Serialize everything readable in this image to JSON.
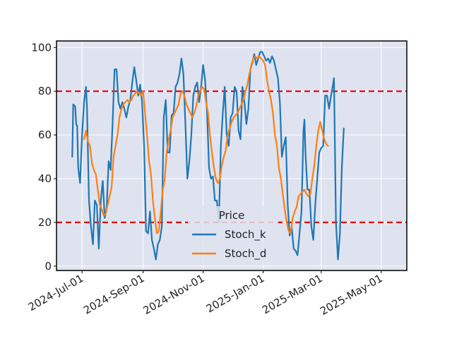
{
  "chart_data": {
    "type": "line",
    "title": "",
    "xlabel": "",
    "ylabel": "",
    "ylim": [
      -2,
      103
    ],
    "yticks": [
      0,
      20,
      40,
      60,
      80,
      100
    ],
    "xlim": [
      "2024-06-05",
      "2025-05-27"
    ],
    "xticks": [
      {
        "date": "2024-07-01",
        "label": "2024-Jul-01"
      },
      {
        "date": "2024-09-01",
        "label": "2024-Sep-01"
      },
      {
        "date": "2024-11-01",
        "label": "2024-Nov-01"
      },
      {
        "date": "2025-01-01",
        "label": "2025-Jan-01"
      },
      {
        "date": "2025-03-01",
        "label": "2025-Mar-01"
      },
      {
        "date": "2025-05-01",
        "label": "2025-May-01"
      }
    ],
    "grid": true,
    "background": "#dfe3f0",
    "legend": {
      "title": "Price",
      "placement": "lower-center"
    },
    "reference_lines": [
      {
        "y": 80,
        "color": "#e8000b",
        "style": "dashed"
      },
      {
        "y": 20,
        "color": "#e8000b",
        "style": "dashed"
      }
    ],
    "series": [
      {
        "name": "Stoch_k",
        "color": "#1f77b4",
        "points": [
          [
            "2024-06-21",
            50
          ],
          [
            "2024-06-22",
            74
          ],
          [
            "2024-06-24",
            73
          ],
          [
            "2024-06-25",
            65
          ],
          [
            "2024-06-26",
            64
          ],
          [
            "2024-06-27",
            45
          ],
          [
            "2024-06-29",
            38
          ],
          [
            "2024-07-01",
            60
          ],
          [
            "2024-07-03",
            75
          ],
          [
            "2024-07-05",
            82
          ],
          [
            "2024-07-06",
            72
          ],
          [
            "2024-07-08",
            30
          ],
          [
            "2024-07-10",
            18
          ],
          [
            "2024-07-12",
            10
          ],
          [
            "2024-07-14",
            30
          ],
          [
            "2024-07-16",
            28
          ],
          [
            "2024-07-18",
            8
          ],
          [
            "2024-07-20",
            30
          ],
          [
            "2024-07-22",
            39
          ],
          [
            "2024-07-24",
            22
          ],
          [
            "2024-07-26",
            27
          ],
          [
            "2024-07-28",
            48
          ],
          [
            "2024-07-30",
            44
          ],
          [
            "2024-08-01",
            65
          ],
          [
            "2024-08-03",
            90
          ],
          [
            "2024-08-05",
            90
          ],
          [
            "2024-08-07",
            75
          ],
          [
            "2024-08-09",
            72
          ],
          [
            "2024-08-11",
            75
          ],
          [
            "2024-08-13",
            72
          ],
          [
            "2024-08-15",
            68
          ],
          [
            "2024-08-17",
            73
          ],
          [
            "2024-08-19",
            76
          ],
          [
            "2024-08-21",
            84
          ],
          [
            "2024-08-23",
            91
          ],
          [
            "2024-08-25",
            85
          ],
          [
            "2024-08-27",
            78
          ],
          [
            "2024-08-29",
            83
          ],
          [
            "2024-08-31",
            75
          ],
          [
            "2024-09-02",
            55
          ],
          [
            "2024-09-04",
            16
          ],
          [
            "2024-09-06",
            15
          ],
          [
            "2024-09-08",
            25
          ],
          [
            "2024-09-10",
            12
          ],
          [
            "2024-09-12",
            8
          ],
          [
            "2024-09-14",
            3
          ],
          [
            "2024-09-16",
            10
          ],
          [
            "2024-09-18",
            12
          ],
          [
            "2024-09-20",
            18
          ],
          [
            "2024-09-22",
            68
          ],
          [
            "2024-09-24",
            76
          ],
          [
            "2024-09-26",
            52
          ],
          [
            "2024-09-28",
            52
          ],
          [
            "2024-09-30",
            69
          ],
          [
            "2024-10-02",
            70
          ],
          [
            "2024-10-04",
            82
          ],
          [
            "2024-10-06",
            84
          ],
          [
            "2024-10-08",
            88
          ],
          [
            "2024-10-10",
            95
          ],
          [
            "2024-10-12",
            88
          ],
          [
            "2024-10-14",
            65
          ],
          [
            "2024-10-16",
            40
          ],
          [
            "2024-10-18",
            48
          ],
          [
            "2024-10-20",
            60
          ],
          [
            "2024-10-22",
            78
          ],
          [
            "2024-10-24",
            82
          ],
          [
            "2024-10-26",
            84
          ],
          [
            "2024-10-28",
            75
          ],
          [
            "2024-10-30",
            82
          ],
          [
            "2024-11-01",
            92
          ],
          [
            "2024-11-03",
            85
          ],
          [
            "2024-11-05",
            70
          ],
          [
            "2024-11-07",
            45
          ],
          [
            "2024-11-09",
            40
          ],
          [
            "2024-11-11",
            41
          ],
          [
            "2024-11-13",
            30
          ],
          [
            "2024-11-15",
            30
          ],
          [
            "2024-11-17",
            20
          ],
          [
            "2024-11-19",
            55
          ],
          [
            "2024-11-21",
            70
          ],
          [
            "2024-11-23",
            82
          ],
          [
            "2024-11-25",
            60
          ],
          [
            "2024-11-27",
            55
          ],
          [
            "2024-11-29",
            68
          ],
          [
            "2024-12-01",
            70
          ],
          [
            "2024-12-03",
            82
          ],
          [
            "2024-12-05",
            80
          ],
          [
            "2024-12-07",
            62
          ],
          [
            "2024-12-09",
            58
          ],
          [
            "2024-12-11",
            82
          ],
          [
            "2024-12-13",
            75
          ],
          [
            "2024-12-15",
            65
          ],
          [
            "2024-12-17",
            72
          ],
          [
            "2024-12-19",
            90
          ],
          [
            "2024-12-21",
            93
          ],
          [
            "2024-12-23",
            97
          ],
          [
            "2024-12-25",
            92
          ],
          [
            "2024-12-27",
            95
          ],
          [
            "2024-12-29",
            98
          ],
          [
            "2024-12-31",
            98
          ],
          [
            "2025-01-02",
            96
          ],
          [
            "2025-01-04",
            94
          ],
          [
            "2025-01-06",
            95
          ],
          [
            "2025-01-08",
            93
          ],
          [
            "2025-01-10",
            96
          ],
          [
            "2025-01-12",
            94
          ],
          [
            "2025-01-14",
            90
          ],
          [
            "2025-01-16",
            86
          ],
          [
            "2025-01-18",
            75
          ],
          [
            "2025-01-20",
            50
          ],
          [
            "2025-01-22",
            55
          ],
          [
            "2025-01-24",
            59
          ],
          [
            "2025-01-26",
            28
          ],
          [
            "2025-01-28",
            14
          ],
          [
            "2025-01-30",
            18
          ],
          [
            "2025-02-01",
            8
          ],
          [
            "2025-02-03",
            7
          ],
          [
            "2025-02-05",
            5
          ],
          [
            "2025-02-07",
            15
          ],
          [
            "2025-02-09",
            25
          ],
          [
            "2025-02-11",
            62
          ],
          [
            "2025-02-12",
            67
          ],
          [
            "2025-02-13",
            52
          ],
          [
            "2025-02-15",
            35
          ],
          [
            "2025-02-17",
            35
          ],
          [
            "2025-02-19",
            18
          ],
          [
            "2025-02-21",
            12
          ],
          [
            "2025-02-23",
            28
          ],
          [
            "2025-02-25",
            40
          ],
          [
            "2025-02-27",
            52
          ],
          [
            "2025-03-01",
            54
          ],
          [
            "2025-03-03",
            55
          ],
          [
            "2025-03-05",
            78
          ],
          [
            "2025-03-07",
            78
          ],
          [
            "2025-03-09",
            72
          ],
          [
            "2025-03-11",
            78
          ],
          [
            "2025-03-13",
            83
          ],
          [
            "2025-03-14",
            86
          ],
          [
            "2025-03-16",
            20
          ],
          [
            "2025-03-18",
            3
          ],
          [
            "2025-03-20",
            15
          ],
          [
            "2025-03-22",
            45
          ],
          [
            "2025-03-24",
            63
          ]
        ]
      },
      {
        "name": "Stoch_d",
        "color": "#ff7f0e",
        "points": [
          [
            "2024-07-03",
            58
          ],
          [
            "2024-07-05",
            62
          ],
          [
            "2024-07-07",
            57
          ],
          [
            "2024-07-09",
            55
          ],
          [
            "2024-07-11",
            47
          ],
          [
            "2024-07-13",
            44
          ],
          [
            "2024-07-15",
            42
          ],
          [
            "2024-07-17",
            35
          ],
          [
            "2024-07-19",
            28
          ],
          [
            "2024-07-21",
            26
          ],
          [
            "2024-07-23",
            23
          ],
          [
            "2024-07-25",
            24
          ],
          [
            "2024-07-27",
            28
          ],
          [
            "2024-07-29",
            32
          ],
          [
            "2024-07-31",
            36
          ],
          [
            "2024-08-02",
            50
          ],
          [
            "2024-08-04",
            55
          ],
          [
            "2024-08-06",
            60
          ],
          [
            "2024-08-08",
            68
          ],
          [
            "2024-08-10",
            72
          ],
          [
            "2024-08-12",
            74
          ],
          [
            "2024-08-14",
            75
          ],
          [
            "2024-08-16",
            76
          ],
          [
            "2024-08-18",
            75
          ],
          [
            "2024-08-20",
            76
          ],
          [
            "2024-08-22",
            78
          ],
          [
            "2024-08-24",
            79
          ],
          [
            "2024-08-26",
            80
          ],
          [
            "2024-08-28",
            79
          ],
          [
            "2024-08-30",
            78
          ],
          [
            "2024-09-01",
            80
          ],
          [
            "2024-09-03",
            70
          ],
          [
            "2024-09-05",
            60
          ],
          [
            "2024-09-07",
            48
          ],
          [
            "2024-09-09",
            42
          ],
          [
            "2024-09-11",
            30
          ],
          [
            "2024-09-13",
            22
          ],
          [
            "2024-09-15",
            15
          ],
          [
            "2024-09-17",
            16
          ],
          [
            "2024-09-19",
            25
          ],
          [
            "2024-09-21",
            35
          ],
          [
            "2024-09-23",
            40
          ],
          [
            "2024-09-25",
            52
          ],
          [
            "2024-09-27",
            58
          ],
          [
            "2024-09-29",
            62
          ],
          [
            "2024-10-01",
            68
          ],
          [
            "2024-10-03",
            70
          ],
          [
            "2024-10-05",
            72
          ],
          [
            "2024-10-07",
            74
          ],
          [
            "2024-10-09",
            79
          ],
          [
            "2024-10-11",
            80
          ],
          [
            "2024-10-13",
            78
          ],
          [
            "2024-10-15",
            74
          ],
          [
            "2024-10-17",
            72
          ],
          [
            "2024-10-19",
            70
          ],
          [
            "2024-10-21",
            68
          ],
          [
            "2024-10-23",
            70
          ],
          [
            "2024-10-25",
            73
          ],
          [
            "2024-10-27",
            78
          ],
          [
            "2024-10-29",
            80
          ],
          [
            "2024-10-31",
            82
          ],
          [
            "2024-11-02",
            81
          ],
          [
            "2024-11-04",
            75
          ],
          [
            "2024-11-06",
            70
          ],
          [
            "2024-11-08",
            60
          ],
          [
            "2024-11-10",
            52
          ],
          [
            "2024-11-12",
            45
          ],
          [
            "2024-11-14",
            40
          ],
          [
            "2024-11-16",
            38
          ],
          [
            "2024-11-18",
            40
          ],
          [
            "2024-11-20",
            46
          ],
          [
            "2024-11-22",
            50
          ],
          [
            "2024-11-24",
            53
          ],
          [
            "2024-11-26",
            60
          ],
          [
            "2024-11-28",
            63
          ],
          [
            "2024-11-30",
            66
          ],
          [
            "2024-12-02",
            68
          ],
          [
            "2024-12-04",
            69
          ],
          [
            "2024-12-06",
            70
          ],
          [
            "2024-12-08",
            72
          ],
          [
            "2024-12-10",
            74
          ],
          [
            "2024-12-12",
            76
          ],
          [
            "2024-12-14",
            80
          ],
          [
            "2024-12-16",
            83
          ],
          [
            "2024-12-18",
            88
          ],
          [
            "2024-12-20",
            92
          ],
          [
            "2024-12-22",
            95
          ],
          [
            "2024-12-24",
            96
          ],
          [
            "2024-12-26",
            95
          ],
          [
            "2024-12-28",
            96
          ],
          [
            "2024-12-30",
            95
          ],
          [
            "2025-01-01",
            94
          ],
          [
            "2025-01-03",
            92
          ],
          [
            "2025-01-05",
            85
          ],
          [
            "2025-01-07",
            80
          ],
          [
            "2025-01-09",
            76
          ],
          [
            "2025-01-11",
            70
          ],
          [
            "2025-01-13",
            60
          ],
          [
            "2025-01-15",
            55
          ],
          [
            "2025-01-17",
            45
          ],
          [
            "2025-01-19",
            40
          ],
          [
            "2025-01-21",
            33
          ],
          [
            "2025-01-23",
            26
          ],
          [
            "2025-01-25",
            20
          ],
          [
            "2025-01-27",
            16
          ],
          [
            "2025-01-29",
            15
          ],
          [
            "2025-01-31",
            22
          ],
          [
            "2025-02-02",
            25
          ],
          [
            "2025-02-04",
            27
          ],
          [
            "2025-02-06",
            32
          ],
          [
            "2025-02-08",
            33
          ],
          [
            "2025-02-10",
            34
          ],
          [
            "2025-02-12",
            35
          ],
          [
            "2025-02-14",
            33
          ],
          [
            "2025-02-16",
            32
          ],
          [
            "2025-02-18",
            33
          ],
          [
            "2025-02-20",
            40
          ],
          [
            "2025-02-22",
            46
          ],
          [
            "2025-02-24",
            55
          ],
          [
            "2025-02-26",
            62
          ],
          [
            "2025-02-28",
            66
          ],
          [
            "2025-03-02",
            62
          ],
          [
            "2025-03-04",
            58
          ],
          [
            "2025-03-06",
            56
          ],
          [
            "2025-03-08",
            55
          ]
        ]
      }
    ]
  }
}
